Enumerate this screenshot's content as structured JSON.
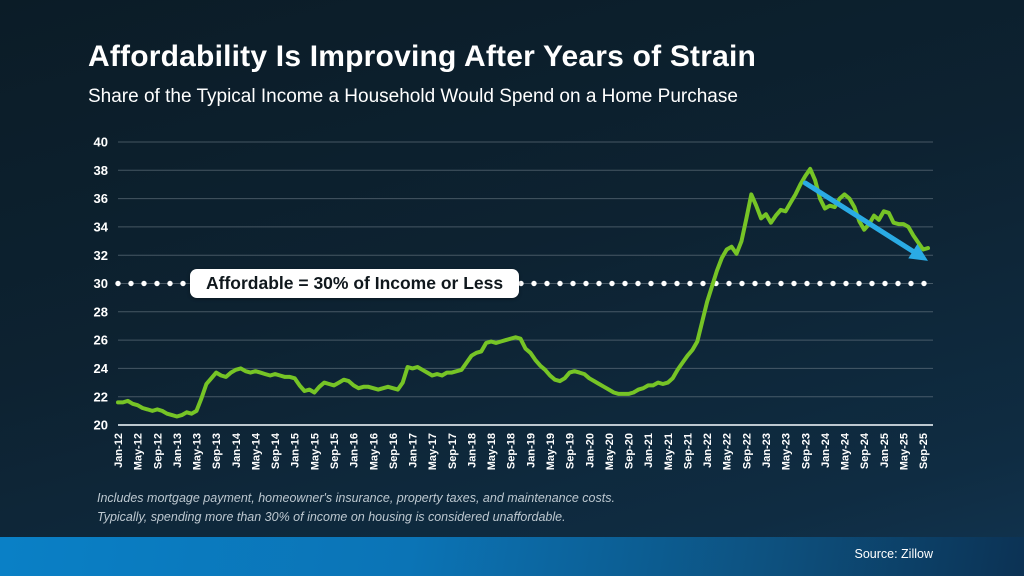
{
  "title": "Affordability Is Improving After Years of Strain",
  "subtitle": "Share of the Typical Income a Household Would Spend on a Home Purchase",
  "callout_label": "Affordable = 30% of Income or Less",
  "footnotes": {
    "line1": "Includes mortgage payment, homeowner's insurance, property taxes, and maintenance costs.",
    "line2": "Typically, spending more than 30% of income on housing is considered unaffordable."
  },
  "source": "Source: Zillow",
  "colors": {
    "series_line": "#76c426",
    "trend_arrow": "#2aabe4",
    "threshold_dots": "#ffffff",
    "gridline": "#75838e",
    "axis_line": "#c7d1d8",
    "axis_text": "#ffffff",
    "callout_bg": "#ffffff",
    "callout_text": "#10181d",
    "footer_bar_left": "#0a80c6",
    "footer_bar_right": "#0c3254"
  },
  "chart_data": {
    "type": "line",
    "title": "Share of the Typical Income a Household Would Spend on a Home Purchase",
    "xlabel": "",
    "ylabel": "",
    "ylim": [
      20,
      40
    ],
    "ytick_step": 2,
    "xtick_every": 4,
    "grid": true,
    "legend": false,
    "reference_line": {
      "value": 30,
      "style": "dotted",
      "label": "Affordable = 30% of Income or Less"
    },
    "trend_arrow": {
      "from": {
        "x_index": 140,
        "value": 37.1
      },
      "to": {
        "x_index": 165,
        "value": 31.6
      }
    },
    "x": [
      "Jan-12",
      "Feb-12",
      "Mar-12",
      "Apr-12",
      "May-12",
      "Jun-12",
      "Jul-12",
      "Aug-12",
      "Sep-12",
      "Oct-12",
      "Nov-12",
      "Dec-12",
      "Jan-13",
      "Feb-13",
      "Mar-13",
      "Apr-13",
      "May-13",
      "Jun-13",
      "Jul-13",
      "Aug-13",
      "Sep-13",
      "Oct-13",
      "Nov-13",
      "Dec-13",
      "Jan-14",
      "Feb-14",
      "Mar-14",
      "Apr-14",
      "May-14",
      "Jun-14",
      "Jul-14",
      "Aug-14",
      "Sep-14",
      "Oct-14",
      "Nov-14",
      "Dec-14",
      "Jan-15",
      "Feb-15",
      "Mar-15",
      "Apr-15",
      "May-15",
      "Jun-15",
      "Jul-15",
      "Aug-15",
      "Sep-15",
      "Oct-15",
      "Nov-15",
      "Dec-15",
      "Jan-16",
      "Feb-16",
      "Mar-16",
      "Apr-16",
      "May-16",
      "Jun-16",
      "Jul-16",
      "Aug-16",
      "Sep-16",
      "Oct-16",
      "Nov-16",
      "Dec-16",
      "Jan-17",
      "Feb-17",
      "Mar-17",
      "Apr-17",
      "May-17",
      "Jun-17",
      "Jul-17",
      "Aug-17",
      "Sep-17",
      "Oct-17",
      "Nov-17",
      "Dec-17",
      "Jan-18",
      "Feb-18",
      "Mar-18",
      "Apr-18",
      "May-18",
      "Jun-18",
      "Jul-18",
      "Aug-18",
      "Sep-18",
      "Oct-18",
      "Nov-18",
      "Dec-18",
      "Jan-19",
      "Feb-19",
      "Mar-19",
      "Apr-19",
      "May-19",
      "Jun-19",
      "Jul-19",
      "Aug-19",
      "Sep-19",
      "Oct-19",
      "Nov-19",
      "Dec-19",
      "Jan-20",
      "Feb-20",
      "Mar-20",
      "Apr-20",
      "May-20",
      "Jun-20",
      "Jul-20",
      "Aug-20",
      "Sep-20",
      "Oct-20",
      "Nov-20",
      "Dec-20",
      "Jan-21",
      "Feb-21",
      "Mar-21",
      "Apr-21",
      "May-21",
      "Jun-21",
      "Jul-21",
      "Aug-21",
      "Sep-21",
      "Oct-21",
      "Nov-21",
      "Dec-21",
      "Jan-22",
      "Feb-22",
      "Mar-22",
      "Apr-22",
      "May-22",
      "Jun-22",
      "Jul-22",
      "Aug-22",
      "Sep-22",
      "Oct-22",
      "Nov-22",
      "Dec-22",
      "Jan-23",
      "Feb-23",
      "Mar-23",
      "Apr-23",
      "May-23",
      "Jun-23",
      "Jul-23",
      "Aug-23",
      "Sep-23",
      "Oct-23",
      "Nov-23",
      "Dec-23",
      "Jan-24",
      "Feb-24",
      "Mar-24",
      "Apr-24",
      "May-24",
      "Jun-24",
      "Jul-24",
      "Aug-24",
      "Sep-24",
      "Oct-24",
      "Nov-24",
      "Dec-24",
      "Jan-25",
      "Feb-25",
      "Mar-25",
      "Apr-25",
      "May-25",
      "Jun-25",
      "Jul-25",
      "Aug-25",
      "Sep-25",
      "Oct-25"
    ],
    "values": [
      21.6,
      21.6,
      21.7,
      21.5,
      21.4,
      21.2,
      21.1,
      21.0,
      21.1,
      21.0,
      20.8,
      20.7,
      20.6,
      20.7,
      20.9,
      20.8,
      21.0,
      21.9,
      22.9,
      23.3,
      23.7,
      23.5,
      23.4,
      23.7,
      23.9,
      24.0,
      23.8,
      23.7,
      23.8,
      23.7,
      23.6,
      23.5,
      23.6,
      23.5,
      23.4,
      23.4,
      23.3,
      22.8,
      22.4,
      22.5,
      22.3,
      22.7,
      23.0,
      22.9,
      22.8,
      23.0,
      23.2,
      23.1,
      22.8,
      22.6,
      22.7,
      22.7,
      22.6,
      22.5,
      22.6,
      22.7,
      22.6,
      22.5,
      23.0,
      24.1,
      24.0,
      24.1,
      23.9,
      23.7,
      23.5,
      23.6,
      23.5,
      23.7,
      23.7,
      23.8,
      23.9,
      24.4,
      24.9,
      25.1,
      25.2,
      25.8,
      25.9,
      25.8,
      25.9,
      26.0,
      26.1,
      26.2,
      26.1,
      25.4,
      25.1,
      24.6,
      24.2,
      23.9,
      23.5,
      23.2,
      23.1,
      23.3,
      23.7,
      23.8,
      23.7,
      23.6,
      23.3,
      23.1,
      22.9,
      22.7,
      22.5,
      22.3,
      22.2,
      22.2,
      22.2,
      22.3,
      22.5,
      22.6,
      22.8,
      22.8,
      23.0,
      22.9,
      23.0,
      23.3,
      23.9,
      24.4,
      24.9,
      25.3,
      25.9,
      27.3,
      28.7,
      29.8,
      30.9,
      31.8,
      32.4,
      32.6,
      32.1,
      33.0,
      34.6,
      36.3,
      35.5,
      34.6,
      34.9,
      34.3,
      34.8,
      35.2,
      35.1,
      35.7,
      36.3,
      37.0,
      37.6,
      38.1,
      37.3,
      36.0,
      35.3,
      35.5,
      35.4,
      36.0,
      36.3,
      36.0,
      35.4,
      34.4,
      33.8,
      34.2,
      34.8,
      34.5,
      35.1,
      35.0,
      34.3,
      34.2,
      34.2,
      34.0,
      33.4,
      32.9,
      32.4,
      32.5
    ]
  }
}
